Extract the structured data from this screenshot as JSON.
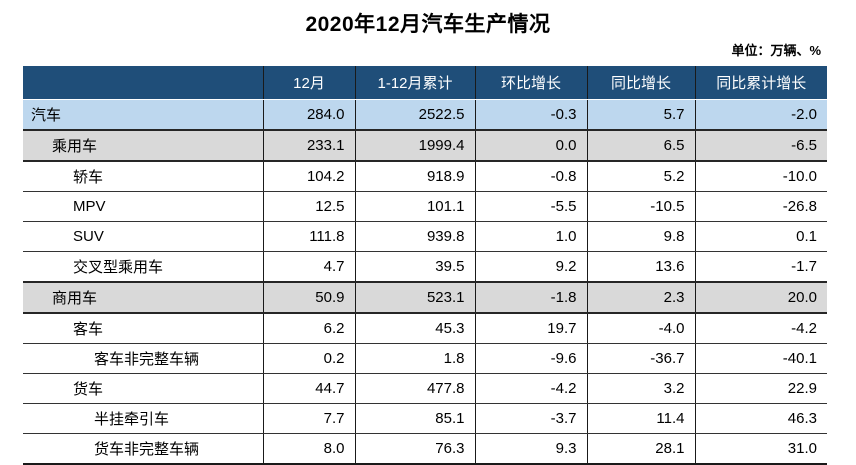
{
  "chart_data": {
    "type": "table",
    "title": "2020年12月汽车生产情况",
    "unit_note": "单位：万辆、%",
    "columns": [
      "",
      "12月",
      "1-12月累计",
      "环比增长",
      "同比增长",
      "同比累计增长"
    ],
    "rows": [
      {
        "label": "汽车",
        "indent": 0,
        "style": "highlight-blue",
        "values": [
          "284.0",
          "2522.5",
          "-0.3",
          "5.7",
          "-2.0"
        ]
      },
      {
        "label": "乘用车",
        "indent": 1,
        "style": "highlight-gray",
        "values": [
          "233.1",
          "1999.4",
          "0.0",
          "6.5",
          "-6.5"
        ]
      },
      {
        "label": "轿车",
        "indent": 2,
        "style": "plain",
        "values": [
          "104.2",
          "918.9",
          "-0.8",
          "5.2",
          "-10.0"
        ]
      },
      {
        "label": "MPV",
        "indent": 2,
        "style": "plain",
        "values": [
          "12.5",
          "101.1",
          "-5.5",
          "-10.5",
          "-26.8"
        ]
      },
      {
        "label": "SUV",
        "indent": 2,
        "style": "plain",
        "values": [
          "111.8",
          "939.8",
          "1.0",
          "9.8",
          "0.1"
        ]
      },
      {
        "label": "交叉型乘用车",
        "indent": 2,
        "style": "plain",
        "values": [
          "4.7",
          "39.5",
          "9.2",
          "13.6",
          "-1.7"
        ]
      },
      {
        "label": "商用车",
        "indent": 1,
        "style": "highlight-gray",
        "values": [
          "50.9",
          "523.1",
          "-1.8",
          "2.3",
          "20.0"
        ]
      },
      {
        "label": "客车",
        "indent": 2,
        "style": "plain",
        "values": [
          "6.2",
          "45.3",
          "19.7",
          "-4.0",
          "-4.2"
        ]
      },
      {
        "label": "客车非完整车辆",
        "indent": 3,
        "style": "plain",
        "values": [
          "0.2",
          "1.8",
          "-9.6",
          "-36.7",
          "-40.1"
        ]
      },
      {
        "label": "货车",
        "indent": 2,
        "style": "plain",
        "values": [
          "44.7",
          "477.8",
          "-4.2",
          "3.2",
          "22.9"
        ]
      },
      {
        "label": "半挂牵引车",
        "indent": 3,
        "style": "plain",
        "values": [
          "7.7",
          "85.1",
          "-3.7",
          "11.4",
          "46.3"
        ]
      },
      {
        "label": "货车非完整车辆",
        "indent": 3,
        "style": "plain",
        "values": [
          "8.0",
          "76.3",
          "9.3",
          "28.1",
          "31.0"
        ]
      }
    ]
  },
  "colors": {
    "header_bg": "#1F4E79",
    "header_text": "#FFFFFF",
    "row_blue": "#BDD7EE",
    "row_gray": "#D9D9D9"
  }
}
